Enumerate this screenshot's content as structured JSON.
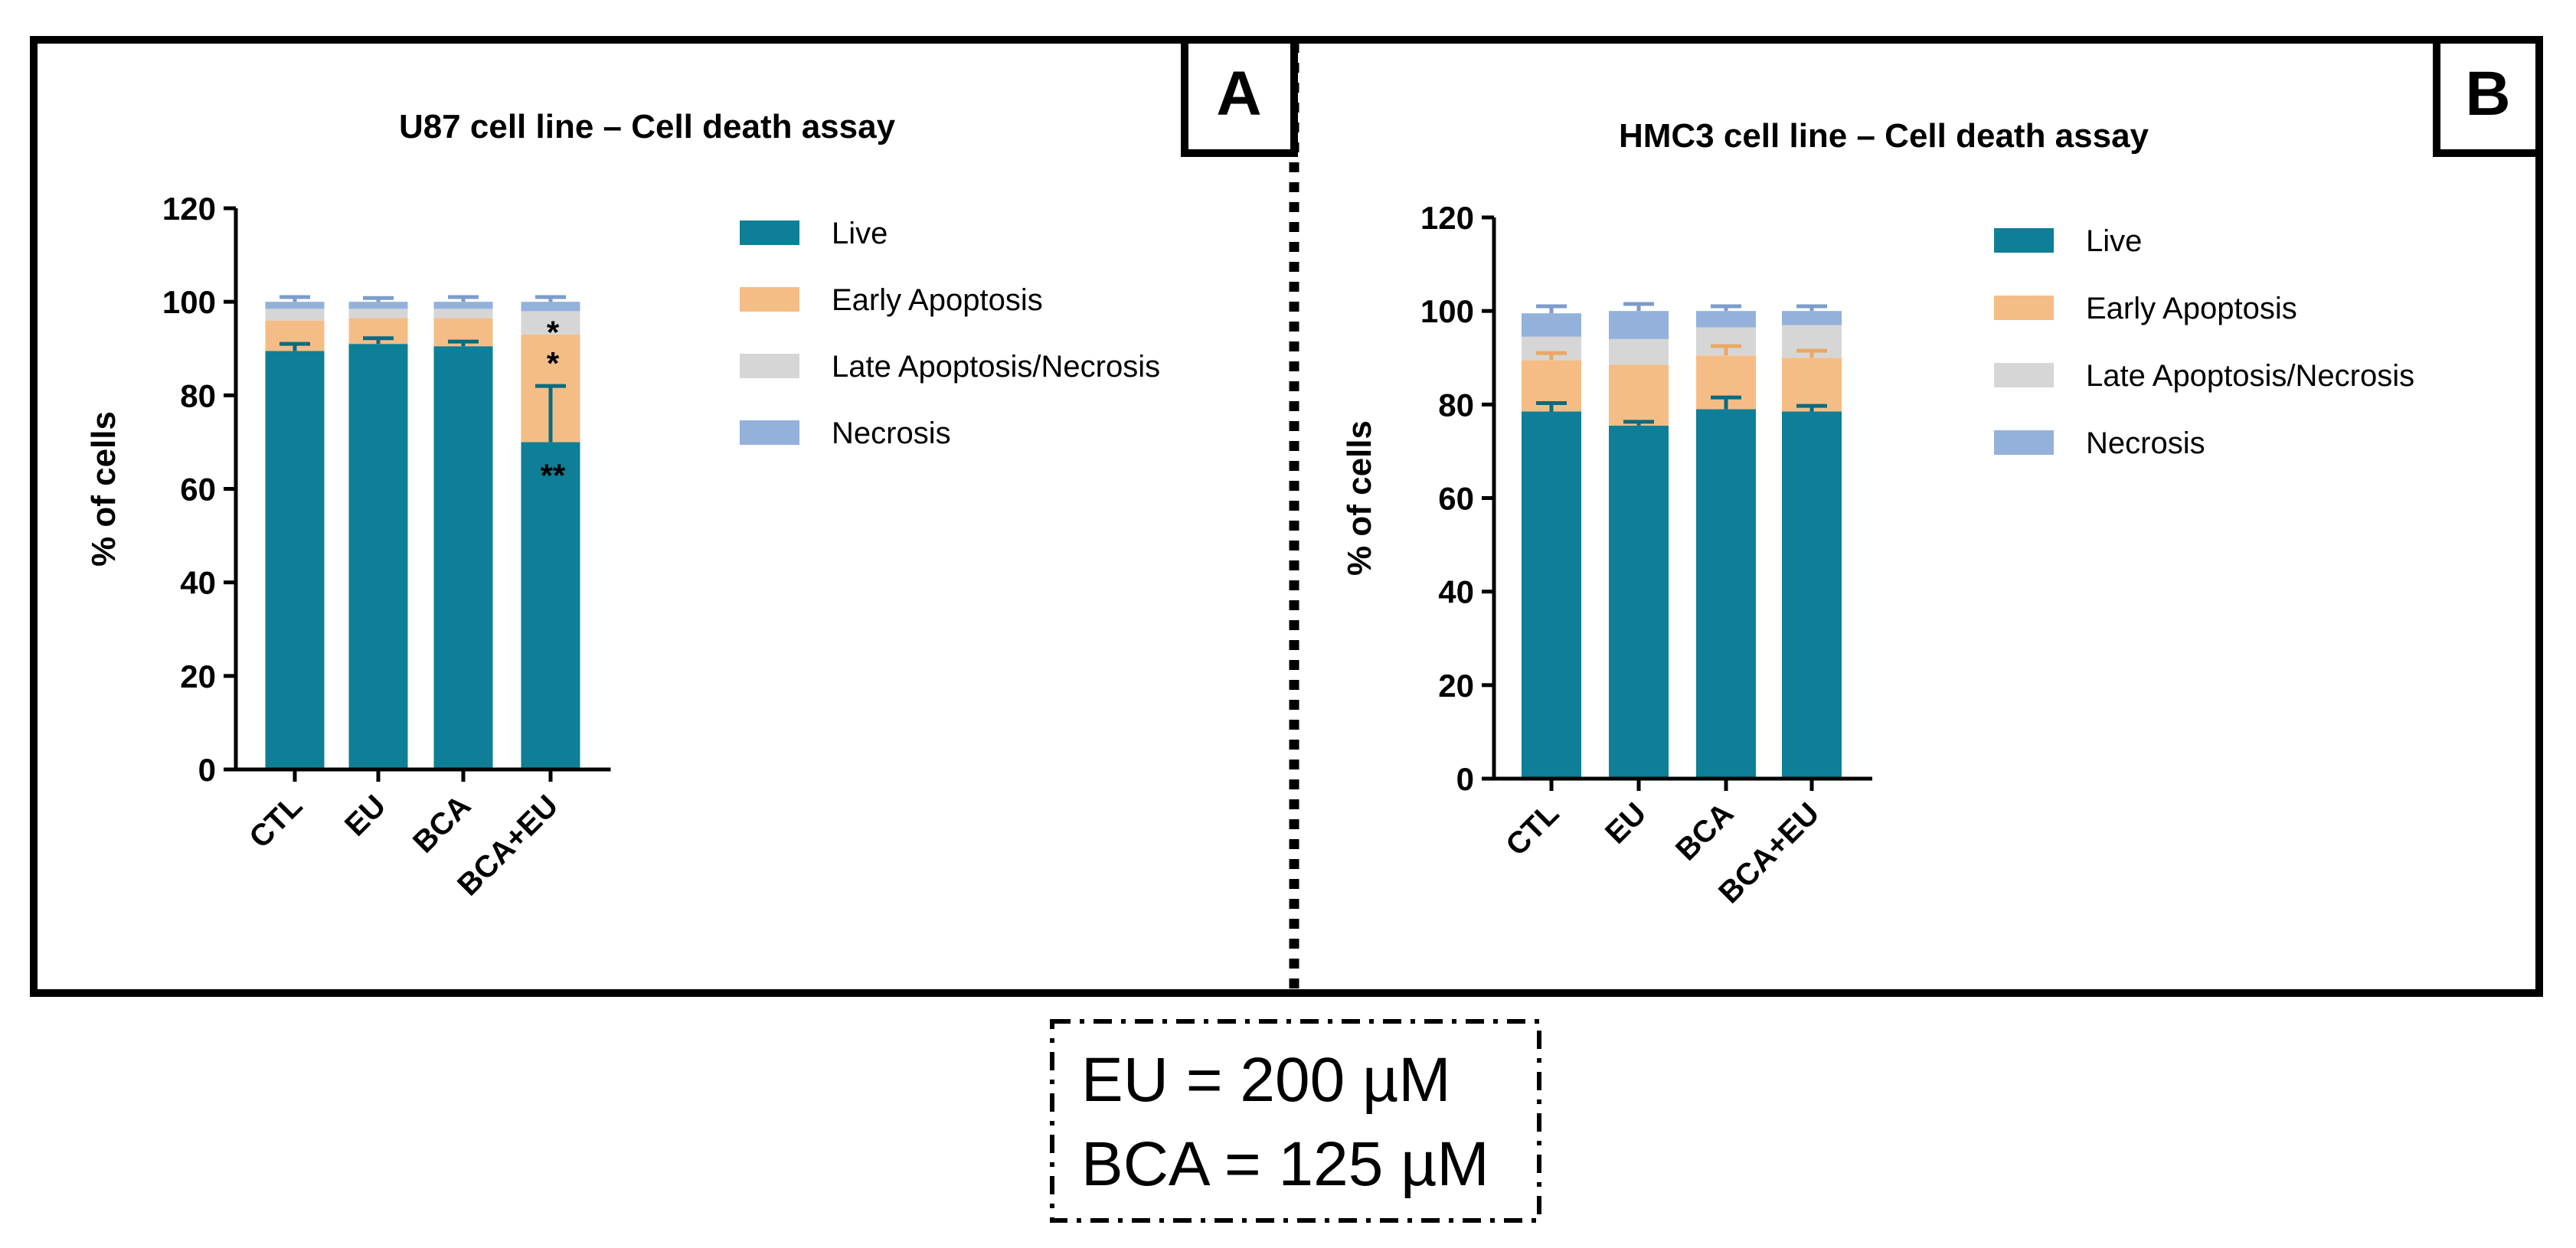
{
  "figure": {
    "conditions_note": [
      "EU = 200 µM",
      "BCA = 125 µM"
    ],
    "panel_letters": [
      "A",
      "B"
    ]
  },
  "colors": {
    "live": "#0E7F96",
    "early_apoptosis": "#F5BD86",
    "late_apoptosis_necrosis": "#D6D6D6",
    "necrosis": "#93B1DB",
    "frame": "#000000"
  },
  "chart_data": [
    {
      "panel": "A",
      "type": "bar",
      "stacked": true,
      "title": "U87 cell line – Cell death assay",
      "xlabel": "",
      "ylabel": "% of cells",
      "ylim": [
        0,
        120
      ],
      "yticks": [
        0,
        20,
        40,
        60,
        80,
        100,
        120
      ],
      "categories": [
        "CTL",
        "EU",
        "BCA",
        "BCA+EU"
      ],
      "series": [
        {
          "name": "Live",
          "color_key": "live",
          "values": [
            89.5,
            91,
            90.5,
            70
          ],
          "errors": [
            1.5,
            1.2,
            1,
            12
          ]
        },
        {
          "name": "Early Apoptosis",
          "color_key": "early_apoptosis",
          "values": [
            6.5,
            5.5,
            6,
            23
          ],
          "errors": [
            0,
            0,
            0,
            0
          ]
        },
        {
          "name": "Late Apoptosis/Necrosis",
          "color_key": "late_apoptosis_necrosis",
          "values": [
            2.5,
            2,
            2,
            5
          ],
          "errors": [
            0,
            0,
            0,
            0
          ]
        },
        {
          "name": "Necrosis",
          "color_key": "necrosis",
          "values": [
            1.5,
            1.5,
            1.5,
            2
          ],
          "errors": [
            1,
            0.8,
            1,
            1
          ]
        }
      ],
      "annotations": [
        {
          "category": "BCA+EU",
          "series": "Live",
          "text": "**"
        },
        {
          "category": "BCA+EU",
          "series": "Early Apoptosis",
          "text": "*"
        },
        {
          "category": "BCA+EU",
          "series": "Late Apoptosis/Necrosis",
          "text": "*"
        }
      ],
      "legend_position": "top-right"
    },
    {
      "panel": "B",
      "type": "bar",
      "stacked": true,
      "title": "HMC3 cell line – Cell death assay",
      "xlabel": "",
      "ylabel": "% of cells",
      "ylim": [
        0,
        120
      ],
      "yticks": [
        0,
        20,
        40,
        60,
        80,
        100,
        120
      ],
      "categories": [
        "CTL",
        "EU",
        "BCA",
        "BCA+EU"
      ],
      "series": [
        {
          "name": "Live",
          "color_key": "live",
          "values": [
            78.5,
            75.5,
            79,
            78.5
          ],
          "errors": [
            1.8,
            0.8,
            2.5,
            1.2
          ]
        },
        {
          "name": "Early Apoptosis",
          "color_key": "early_apoptosis",
          "values": [
            11,
            13,
            11.5,
            11.5
          ],
          "errors": [
            1.5,
            0,
            2,
            1.5
          ]
        },
        {
          "name": "Late Apoptosis/Necrosis",
          "color_key": "late_apoptosis_necrosis",
          "values": [
            5,
            5.5,
            6,
            7
          ],
          "errors": [
            0,
            0,
            0,
            0
          ]
        },
        {
          "name": "Necrosis",
          "color_key": "necrosis",
          "values": [
            5,
            6,
            3.5,
            3
          ],
          "errors": [
            1.5,
            1.5,
            1,
            1
          ]
        }
      ],
      "annotations": [],
      "legend_position": "top-right"
    }
  ]
}
